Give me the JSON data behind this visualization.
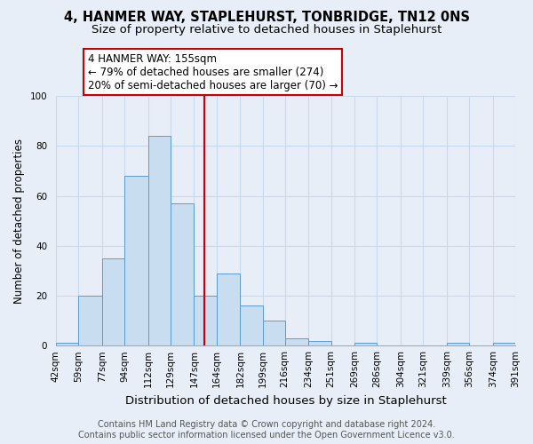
{
  "title": "4, HANMER WAY, STAPLEHURST, TONBRIDGE, TN12 0NS",
  "subtitle": "Size of property relative to detached houses in Staplehurst",
  "xlabel": "Distribution of detached houses by size in Staplehurst",
  "ylabel": "Number of detached properties",
  "bar_color": "#c8ddf0",
  "bar_edge_color": "#5b9bd5",
  "background_color": "#e8eef8",
  "bin_edges": [
    42,
    59,
    77,
    94,
    112,
    129,
    147,
    164,
    182,
    199,
    216,
    234,
    251,
    269,
    286,
    304,
    321,
    339,
    356,
    374,
    391
  ],
  "bin_labels": [
    "42sqm",
    "59sqm",
    "77sqm",
    "94sqm",
    "112sqm",
    "129sqm",
    "147sqm",
    "164sqm",
    "182sqm",
    "199sqm",
    "216sqm",
    "234sqm",
    "251sqm",
    "269sqm",
    "286sqm",
    "304sqm",
    "321sqm",
    "339sqm",
    "356sqm",
    "374sqm",
    "391sqm"
  ],
  "counts": [
    1,
    20,
    35,
    68,
    84,
    57,
    20,
    29,
    16,
    10,
    3,
    2,
    0,
    1,
    0,
    0,
    0,
    1,
    0,
    1
  ],
  "vline_x": 155,
  "vline_color": "#cc0000",
  "ylim": [
    0,
    100
  ],
  "yticks": [
    0,
    20,
    40,
    60,
    80,
    100
  ],
  "annotation_line1": "4 HANMER WAY: 155sqm",
  "annotation_line2": "← 79% of detached houses are smaller (274)",
  "annotation_line3": "20% of semi-detached houses are larger (70) →",
  "footer_line1": "Contains HM Land Registry data © Crown copyright and database right 2024.",
  "footer_line2": "Contains public sector information licensed under the Open Government Licence v3.0.",
  "grid_color": "#c8d8ee",
  "title_fontsize": 10.5,
  "subtitle_fontsize": 9.5,
  "xlabel_fontsize": 9.5,
  "ylabel_fontsize": 8.5,
  "tick_fontsize": 7.5,
  "footer_fontsize": 7,
  "annotation_fontsize": 8.5
}
